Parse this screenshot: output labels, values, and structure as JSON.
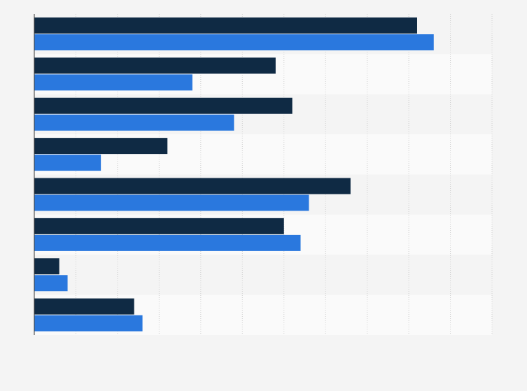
{
  "chart_data": {
    "type": "bar",
    "orientation": "horizontal",
    "categories": [
      null,
      null,
      null,
      null,
      null,
      null,
      null,
      null
    ],
    "series": [
      {
        "color": "#0f2a44",
        "values": [
          9.2,
          5.8,
          6.2,
          3.2,
          7.6,
          6.0,
          0.6,
          2.4
        ]
      },
      {
        "color": "#2a78de",
        "values": [
          9.6,
          3.8,
          4.8,
          1.6,
          6.6,
          6.4,
          0.8,
          2.6
        ]
      }
    ],
    "xlim": [
      0,
      11
    ],
    "xticks": [
      0,
      1,
      2,
      3,
      4,
      5,
      6,
      7,
      8,
      9,
      10,
      11
    ],
    "grid": true
  }
}
